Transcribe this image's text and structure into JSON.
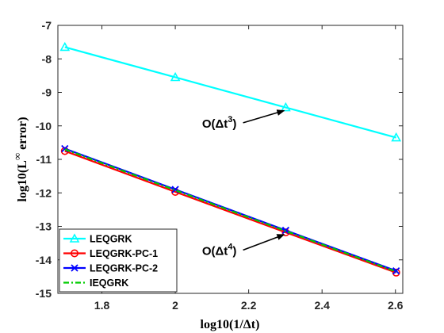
{
  "chart_data": {
    "type": "line",
    "title": "",
    "xlabel": "log10(1/Δt)",
    "ylabel_main": "log10(L",
    "ylabel_sup": "∞",
    "ylabel_end": " error)",
    "xlim": [
      1.68,
      2.62
    ],
    "ylim": [
      -15,
      -7
    ],
    "xticks": [
      1.8,
      2.0,
      2.2,
      2.4,
      2.6
    ],
    "xtick_labels": [
      "1.8",
      "2",
      "2.2",
      "2.4",
      "2.6"
    ],
    "yticks": [
      -15,
      -14,
      -13,
      -12,
      -11,
      -10,
      -9,
      -8,
      -7
    ],
    "ytick_labels": [
      "-15",
      "-14",
      "-13",
      "-12",
      "-11",
      "-10",
      "-9",
      "-8",
      "-7"
    ],
    "grid": false,
    "legend_position": "bottom-left",
    "x": [
      1.699,
      2.0,
      2.301,
      2.602
    ],
    "series": [
      {
        "name": "LEQGRK",
        "values": [
          -7.65,
          -8.55,
          -9.45,
          -10.35
        ],
        "color": "#00FFFF",
        "marker": "triangle",
        "dash": "solid"
      },
      {
        "name": "LEQGRK-PC-1",
        "values": [
          -10.75,
          -11.97,
          -13.18,
          -14.38
        ],
        "color": "#FF0000",
        "marker": "circle",
        "dash": "solid"
      },
      {
        "name": "LEQGRK-PC-2",
        "values": [
          -10.68,
          -11.9,
          -13.12,
          -14.33
        ],
        "color": "#0000FF",
        "marker": "x",
        "dash": "solid"
      },
      {
        "name": "IEQGRK",
        "values": [
          -10.7,
          -11.92,
          -13.14,
          -14.35
        ],
        "color": "#00CC00",
        "marker": "none",
        "dash": "dashdot"
      }
    ],
    "annotations": [
      {
        "base": "O(Δt",
        "sup": "3",
        "end": ")",
        "text_x": 2.12,
        "text_y": -10.05,
        "arrow_to_x": 2.301,
        "arrow_to_y": -9.45
      },
      {
        "base": "O(Δt",
        "sup": "4",
        "end": ")",
        "text_x": 2.12,
        "text_y": -13.85,
        "arrow_to_x": 2.301,
        "arrow_to_y": -13.15
      }
    ]
  }
}
